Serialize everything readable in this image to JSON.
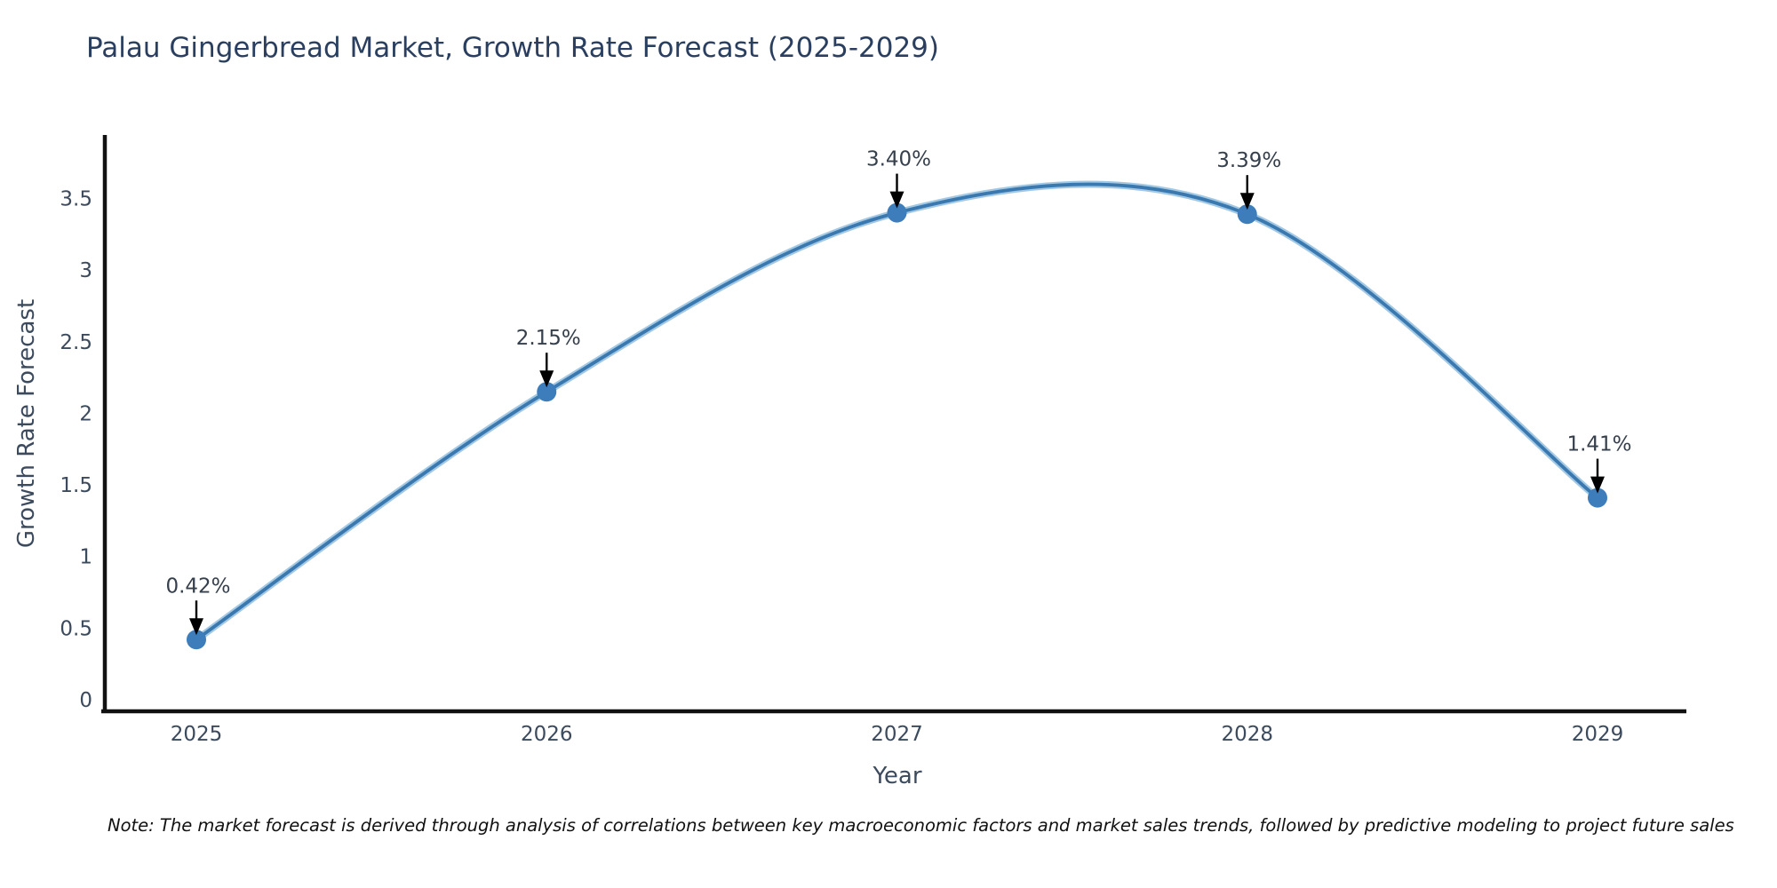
{
  "chart_data": {
    "type": "line",
    "line_shape": "spline",
    "title": "Palau Gingerbread Market, Growth Rate Forecast (2025-2029)",
    "xlabel": "Year",
    "ylabel": "Growth Rate Forecast",
    "x": [
      2025,
      2026,
      2027,
      2028,
      2029
    ],
    "series": [
      {
        "name": "Growth Rate Forecast",
        "values": [
          0.42,
          2.15,
          3.4,
          3.39,
          1.41
        ]
      }
    ],
    "point_labels": [
      "0.42%",
      "2.15%",
      "3.40%",
      "3.39%",
      "1.41%"
    ],
    "yticks": [
      0,
      0.5,
      1,
      1.5,
      2,
      2.5,
      3,
      3.5
    ],
    "ylim": [
      0,
      3.95
    ],
    "grid": false,
    "legend": "none",
    "note": "Note: The market forecast is derived through analysis of correlations between key macroeconomic factors and market sales trends, followed by predictive modeling to project future sales",
    "colors": {
      "line": "#3a78b0",
      "line_halo": "#93bede",
      "marker": "#3d7dbb",
      "arrow": "#000000",
      "spine": "#111111",
      "title_text": "#2a3f5f",
      "tick_text": "#3c4a5d",
      "annotation_text": "#36404d",
      "background": "#ffffff"
    }
  }
}
